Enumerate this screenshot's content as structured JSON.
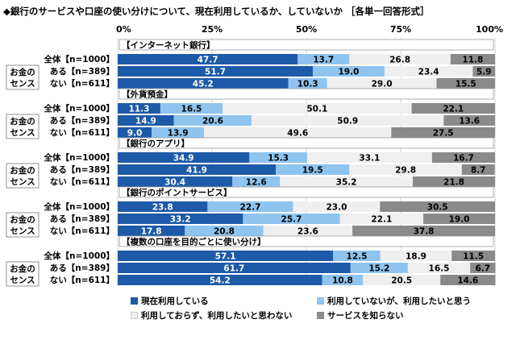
{
  "title": "◆銀行のサービスや口座の使い分けについて、現在利用しているか、していないか ［各単一回答形式］",
  "chart_data": {
    "type": "bar",
    "orientation": "horizontal",
    "stacked": true,
    "xlim": [
      0,
      100
    ],
    "ticks": [
      "0%",
      "25%",
      "50%",
      "75%",
      "100%"
    ],
    "colors": [
      "#1d5aa8",
      "#8fc4ef",
      "#efefef",
      "#8a8a8a"
    ],
    "legend": [
      "現在利用している",
      "利用していないが、利用したいと思う",
      "利用しておらず、利用したいと思わない",
      "サービスを知らない"
    ],
    "group_label": "お金の\nセンス",
    "row_labels": [
      "全体【n=1000】",
      "ある【n=389】",
      "ない【n=611】"
    ],
    "sections": [
      {
        "title": "【インターネット銀行】",
        "rows": [
          [
            47.7,
            13.7,
            26.8,
            11.8
          ],
          [
            51.7,
            19.0,
            23.4,
            5.9
          ],
          [
            45.2,
            10.3,
            29.0,
            15.5
          ]
        ]
      },
      {
        "title": "【外貨預金】",
        "rows": [
          [
            11.3,
            16.5,
            50.1,
            22.1
          ],
          [
            14.9,
            20.6,
            50.9,
            13.6
          ],
          [
            9.0,
            13.9,
            49.6,
            27.5
          ]
        ]
      },
      {
        "title": "【銀行のアプリ】",
        "rows": [
          [
            34.9,
            15.3,
            33.1,
            16.7
          ],
          [
            41.9,
            19.5,
            29.8,
            8.7
          ],
          [
            30.4,
            12.6,
            35.2,
            21.8
          ]
        ]
      },
      {
        "title": "【銀行のポイントサービス】",
        "rows": [
          [
            23.8,
            22.7,
            23.0,
            30.5
          ],
          [
            33.2,
            25.7,
            22.1,
            19.0
          ],
          [
            17.8,
            20.8,
            23.6,
            37.8
          ]
        ]
      },
      {
        "title": "【複数の口座を目的ごとに使い分け】",
        "rows": [
          [
            57.1,
            12.5,
            18.9,
            11.5
          ],
          [
            61.7,
            15.2,
            16.5,
            6.7
          ],
          [
            54.2,
            10.8,
            20.5,
            14.6
          ]
        ]
      }
    ]
  }
}
